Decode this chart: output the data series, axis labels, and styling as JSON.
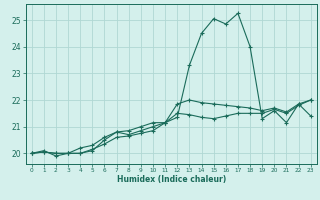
{
  "xlabel": "Humidex (Indice chaleur)",
  "bg_color": "#d4f0ec",
  "grid_color": "#b0d8d4",
  "line_color": "#1a6b5a",
  "spine_color": "#1a6b5a",
  "ylim": [
    19.6,
    25.6
  ],
  "xlim": [
    -0.5,
    23.5
  ],
  "yticks": [
    20,
    21,
    22,
    23,
    24,
    25
  ],
  "x_ticks": [
    0,
    1,
    2,
    3,
    4,
    5,
    6,
    7,
    8,
    9,
    10,
    11,
    12,
    13,
    14,
    15,
    16,
    17,
    18,
    19,
    20,
    21,
    22,
    23
  ],
  "series1_x": [
    0,
    1,
    2,
    3,
    4,
    5,
    6,
    7,
    8,
    9,
    10,
    11,
    12,
    13,
    14,
    15,
    16,
    17,
    18,
    19,
    20,
    21,
    22,
    23
  ],
  "series1_y": [
    20.0,
    20.1,
    19.9,
    20.0,
    20.0,
    20.1,
    20.5,
    20.8,
    20.7,
    20.85,
    21.0,
    21.15,
    21.85,
    22.0,
    21.9,
    21.85,
    21.8,
    21.75,
    21.7,
    21.6,
    21.7,
    21.55,
    21.85,
    22.0
  ],
  "series2_x": [
    0,
    1,
    2,
    3,
    4,
    5,
    6,
    7,
    8,
    9,
    10,
    11,
    12,
    13,
    14,
    15,
    16,
    17,
    18,
    19,
    20,
    21,
    22,
    23
  ],
  "series2_y": [
    20.0,
    20.05,
    20.0,
    20.0,
    20.2,
    20.3,
    20.6,
    20.8,
    20.85,
    21.0,
    21.15,
    21.15,
    21.5,
    21.45,
    21.35,
    21.3,
    21.4,
    21.5,
    21.5,
    21.5,
    21.65,
    21.5,
    21.8,
    22.0
  ],
  "series3_x": [
    0,
    1,
    2,
    3,
    4,
    5,
    6,
    7,
    8,
    9,
    10,
    11,
    12,
    13,
    14,
    15,
    16,
    17,
    18,
    19,
    20,
    21,
    22,
    23
  ],
  "series3_y": [
    20.0,
    20.05,
    20.0,
    20.0,
    20.0,
    20.15,
    20.35,
    20.6,
    20.65,
    20.75,
    20.85,
    21.15,
    21.35,
    23.3,
    24.5,
    25.05,
    24.85,
    25.25,
    24.0,
    21.3,
    21.6,
    21.15,
    21.85,
    21.4
  ]
}
